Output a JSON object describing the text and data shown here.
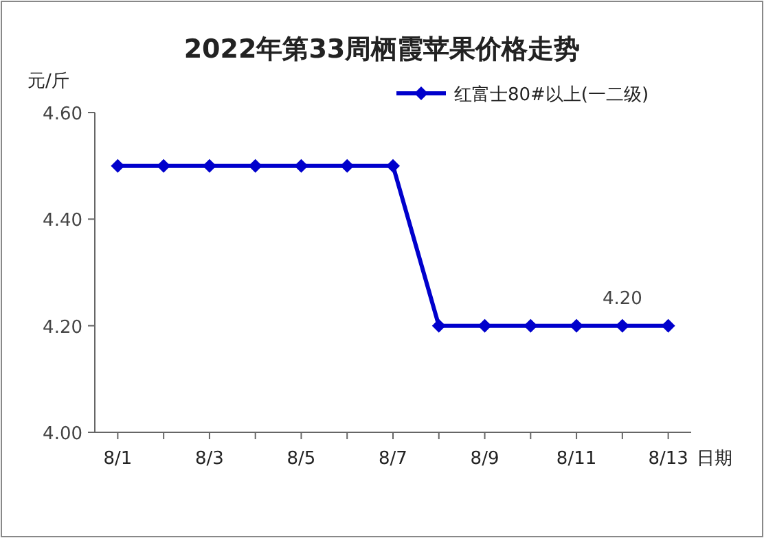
{
  "chart_data": {
    "type": "line",
    "title": "2022年第33周栖霞苹果价格走势",
    "ylabel": "元/斤",
    "xlabel": "日期",
    "categories": [
      "8/1",
      null,
      "8/3",
      null,
      "8/5",
      null,
      "8/7",
      null,
      "8/9",
      null,
      "8/11",
      null,
      "8/13"
    ],
    "series": [
      {
        "name": "红富士80#以上(一二级)",
        "color": "#0000cc",
        "values": [
          4.5,
          4.5,
          4.5,
          4.5,
          4.5,
          4.5,
          4.5,
          4.2,
          4.2,
          4.2,
          4.2,
          4.2,
          4.2
        ],
        "value_labels": [
          null,
          null,
          null,
          null,
          null,
          null,
          null,
          null,
          null,
          null,
          null,
          "4.20",
          null
        ]
      }
    ],
    "ylim": [
      4.0,
      4.6
    ],
    "yticks": [
      {
        "value": 4.0,
        "label": "4.00"
      },
      {
        "value": 4.2,
        "label": "4.20"
      },
      {
        "value": 4.4,
        "label": "4.40"
      },
      {
        "value": 4.6,
        "label": "4.60"
      }
    ],
    "marker": "diamond",
    "line_style": "solid",
    "legend": "top right"
  }
}
